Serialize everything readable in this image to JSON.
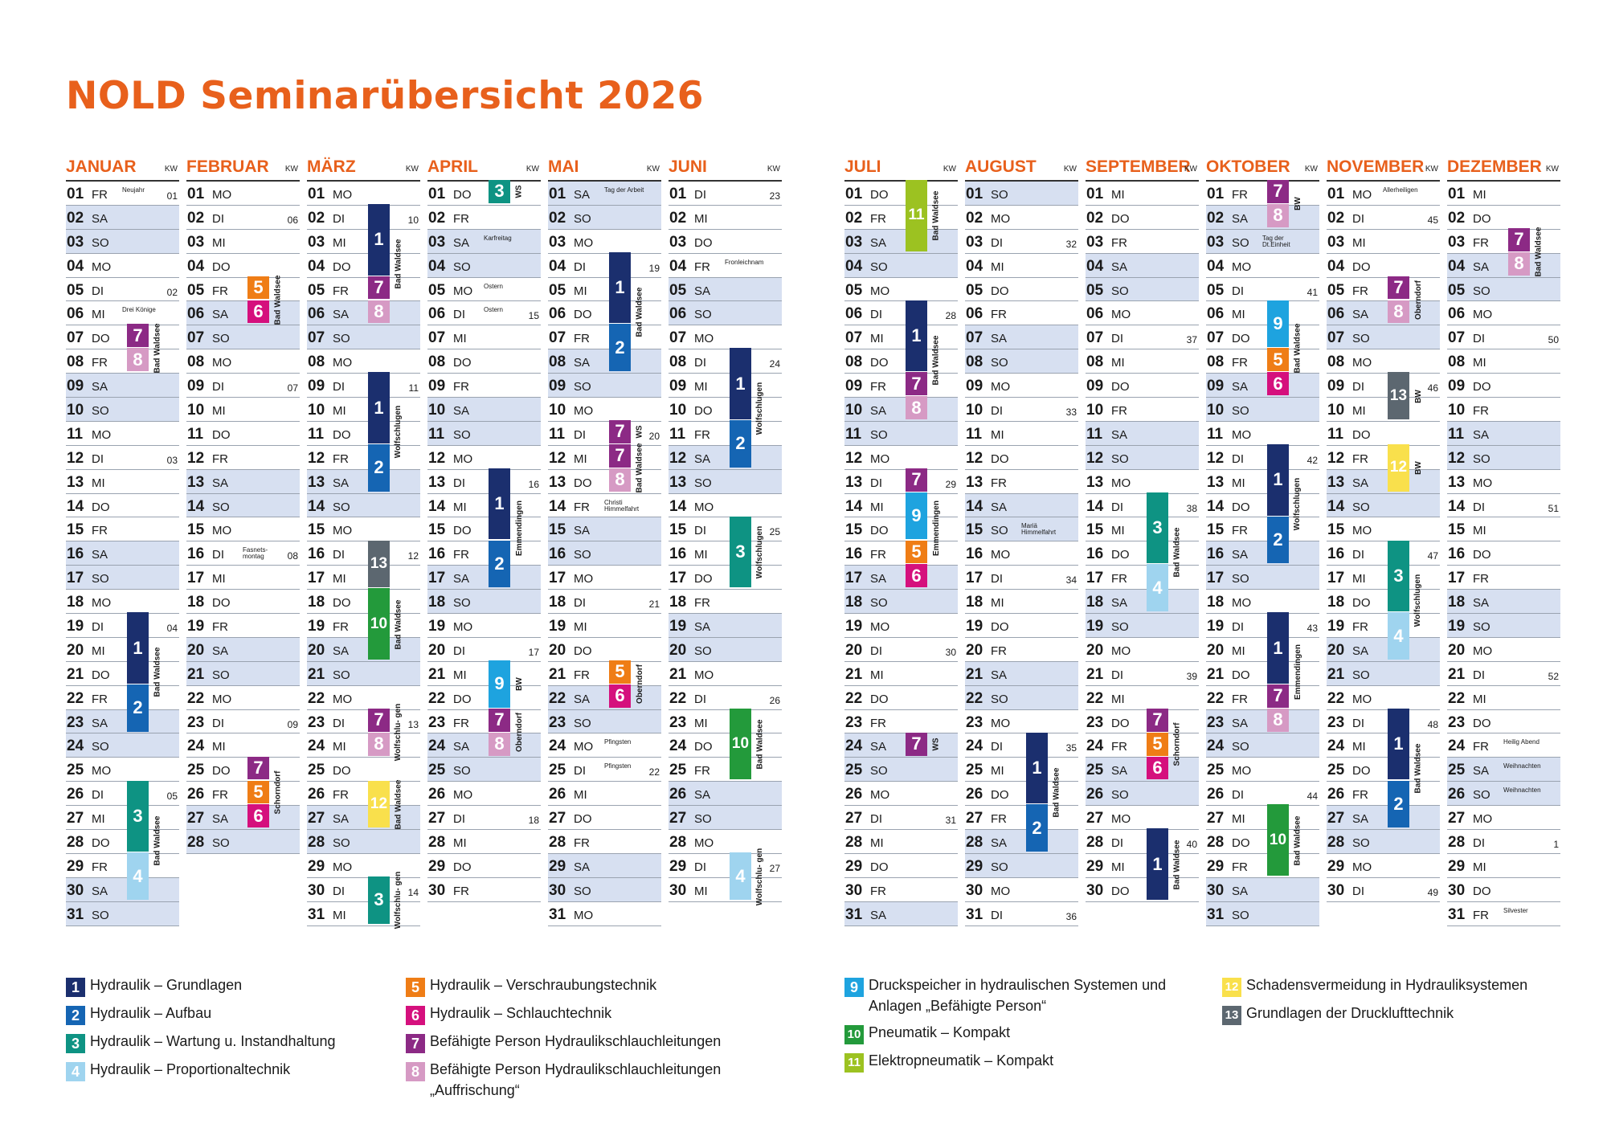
{
  "title": "NOLD Seminarübersicht 2026",
  "kw_label": "KW",
  "colors": {
    "1": "#1b2f6e",
    "2": "#1565b3",
    "3": "#0e9383",
    "4": "#9fd4ef",
    "5": "#ef7d16",
    "6": "#d5107d",
    "7": "#8c2a85",
    "8": "#d69ac4",
    "9": "#1ea3df",
    "10": "#239a3b",
    "11": "#9cc221",
    "12": "#f9e04c",
    "13": "#5c6770"
  },
  "months": [
    {
      "name": "JANUAR",
      "start": 4,
      "days": 31,
      "kw": {
        "1": "01",
        "5": "02",
        "12": "03",
        "19": "04",
        "26": "05"
      },
      "hol": {
        "1": "Neujahr",
        "6": "Drei Könige"
      },
      "seminars": [
        {
          "n": "7",
          "s": 7,
          "e": 7
        },
        {
          "n": "8",
          "s": 8,
          "e": 8
        },
        {
          "n": "1",
          "s": 19,
          "e": 21
        },
        {
          "n": "2",
          "s": 22,
          "e": 23
        },
        {
          "n": "3",
          "s": 26,
          "e": 28
        },
        {
          "n": "4",
          "s": 29,
          "e": 30
        }
      ],
      "locs": [
        {
          "t": "Bad Waldsee",
          "s": 7,
          "e": 8
        },
        {
          "t": "Bad Waldsee",
          "s": 19,
          "e": 23
        },
        {
          "t": "Bad Waldsee",
          "s": 26,
          "e": 30
        }
      ]
    },
    {
      "name": "FEBRUAR",
      "start": 0,
      "days": 28,
      "kw": {
        "2": "06",
        "9": "07",
        "16": "08",
        "23": "09"
      },
      "hol": {
        "16": "Fasnets- montag"
      },
      "seminars": [
        {
          "n": "5",
          "s": 5,
          "e": 5
        },
        {
          "n": "6",
          "s": 6,
          "e": 6
        },
        {
          "n": "7",
          "s": 25,
          "e": 25
        },
        {
          "n": "5",
          "s": 26,
          "e": 26
        },
        {
          "n": "6",
          "s": 27,
          "e": 27
        }
      ],
      "locs": [
        {
          "t": "Bad Waldsee",
          "s": 5,
          "e": 6
        },
        {
          "t": "Schorndorf",
          "s": 25,
          "e": 27
        }
      ]
    },
    {
      "name": "MÄRZ",
      "start": 0,
      "days": 31,
      "kw": {
        "2": "10",
        "9": "11",
        "16": "12",
        "23": "13",
        "30": "14"
      },
      "hol": {},
      "seminars": [
        {
          "n": "1",
          "s": 2,
          "e": 4
        },
        {
          "n": "7",
          "s": 5,
          "e": 5
        },
        {
          "n": "8",
          "s": 6,
          "e": 6
        },
        {
          "n": "1",
          "s": 9,
          "e": 11
        },
        {
          "n": "2",
          "s": 12,
          "e": 13
        },
        {
          "n": "13",
          "s": 16,
          "e": 17
        },
        {
          "n": "10",
          "s": 18,
          "e": 20
        },
        {
          "n": "7",
          "s": 23,
          "e": 23
        },
        {
          "n": "8",
          "s": 24,
          "e": 24
        },
        {
          "n": "12",
          "s": 26,
          "e": 27
        },
        {
          "n": "3",
          "s": 30,
          "e": 31
        }
      ],
      "locs": [
        {
          "t": "Bad Waldsee",
          "s": 2,
          "e": 6
        },
        {
          "t": "Wolfschlugen",
          "s": 9,
          "e": 13
        },
        {
          "t": "Bad Waldsee",
          "s": 18,
          "e": 20
        },
        {
          "t": "Wolfschlu- gen",
          "s": 23,
          "e": 24
        },
        {
          "t": "Bad Waldsee",
          "s": 26,
          "e": 27
        },
        {
          "t": "Wolfschlu- gen",
          "s": 30,
          "e": 31
        }
      ]
    },
    {
      "name": "APRIL",
      "start": 3,
      "days": 30,
      "kw": {
        "6": "15",
        "13": "16",
        "20": "17",
        "27": "18"
      },
      "hol": {
        "3": "Karfreitag",
        "5": "Ostern",
        "6": "Ostern"
      },
      "seminars": [
        {
          "n": "3",
          "s": 1,
          "e": 1
        },
        {
          "n": "1",
          "s": 13,
          "e": 15
        },
        {
          "n": "2",
          "s": 16,
          "e": 17
        },
        {
          "n": "9",
          "s": 21,
          "e": 22
        },
        {
          "n": "7",
          "s": 23,
          "e": 23
        },
        {
          "n": "8",
          "s": 24,
          "e": 24
        }
      ],
      "locs": [
        {
          "t": "WS",
          "s": 1,
          "e": 1
        },
        {
          "t": "Emmendingen",
          "s": 13,
          "e": 17
        },
        {
          "t": "BW",
          "s": 21,
          "e": 22
        },
        {
          "t": "Oberndorf",
          "s": 23,
          "e": 24
        }
      ]
    },
    {
      "name": "MAI",
      "start": 5,
      "days": 31,
      "kw": {
        "4": "19",
        "11": "20",
        "18": "21",
        "25": "22"
      },
      "hol": {
        "1": "Tag der Arbeit",
        "14": "Christi Himmelfahrt",
        "24": "Pfingsten",
        "25": "Pfingsten"
      },
      "seminars": [
        {
          "n": "1",
          "s": 4,
          "e": 6
        },
        {
          "n": "2",
          "s": 7,
          "e": 8
        },
        {
          "n": "7",
          "s": 11,
          "e": 11
        },
        {
          "n": "7",
          "s": 12,
          "e": 12
        },
        {
          "n": "8",
          "s": 13,
          "e": 13
        },
        {
          "n": "5",
          "s": 21,
          "e": 21
        },
        {
          "n": "6",
          "s": 22,
          "e": 22
        }
      ],
      "locs": [
        {
          "t": "Bad Waldsee",
          "s": 4,
          "e": 8
        },
        {
          "t": "WS",
          "s": 11,
          "e": 11
        },
        {
          "t": "Bad Waldsee",
          "s": 12,
          "e": 13
        },
        {
          "t": "Oberndorf",
          "s": 21,
          "e": 22
        }
      ]
    },
    {
      "name": "JUNI",
      "start": 1,
      "days": 30,
      "kw": {
        "1": "23",
        "8": "24",
        "15": "25",
        "22": "26",
        "29": "27"
      },
      "hol": {
        "4": "Fronleichnam"
      },
      "seminars": [
        {
          "n": "1",
          "s": 8,
          "e": 10
        },
        {
          "n": "2",
          "s": 11,
          "e": 12
        },
        {
          "n": "3",
          "s": 15,
          "e": 17
        },
        {
          "n": "10",
          "s": 23,
          "e": 25
        },
        {
          "n": "4",
          "s": 29,
          "e": 30
        }
      ],
      "locs": [
        {
          "t": "Wolfschlugen",
          "s": 8,
          "e": 12
        },
        {
          "t": "Wolfschlugen",
          "s": 15,
          "e": 17
        },
        {
          "t": "Bad Waldsee",
          "s": 23,
          "e": 25
        },
        {
          "t": "Wolfschlu- gen",
          "s": 29,
          "e": 30
        }
      ]
    },
    {
      "name": "JULI",
      "start": 3,
      "days": 31,
      "kw": {
        "6": "28",
        "13": "29",
        "20": "30",
        "27": "31"
      },
      "hol": {},
      "seminars": [
        {
          "n": "11",
          "s": 1,
          "e": 3
        },
        {
          "n": "1",
          "s": 6,
          "e": 8
        },
        {
          "n": "7",
          "s": 9,
          "e": 9
        },
        {
          "n": "8",
          "s": 10,
          "e": 10
        },
        {
          "n": "7",
          "s": 13,
          "e": 13
        },
        {
          "n": "9",
          "s": 14,
          "e": 15
        },
        {
          "n": "5",
          "s": 16,
          "e": 16
        },
        {
          "n": "6",
          "s": 17,
          "e": 17
        },
        {
          "n": "7",
          "s": 24,
          "e": 24
        }
      ],
      "locs": [
        {
          "t": "Bad Waldsee",
          "s": 1,
          "e": 3
        },
        {
          "t": "Bad Waldsee",
          "s": 6,
          "e": 10
        },
        {
          "t": "Emmendingen",
          "s": 13,
          "e": 17
        },
        {
          "t": "WS",
          "s": 24,
          "e": 24
        }
      ]
    },
    {
      "name": "AUGUST",
      "start": 6,
      "days": 31,
      "kw": {
        "3": "32",
        "10": "33",
        "17": "34",
        "24": "35",
        "31": "36"
      },
      "hol": {
        "15": "Mariä Himmelfahrt"
      },
      "seminars": [
        {
          "n": "1",
          "s": 24,
          "e": 26
        },
        {
          "n": "2",
          "s": 27,
          "e": 28
        }
      ],
      "locs": [
        {
          "t": "Bad Waldsee",
          "s": 24,
          "e": 28
        }
      ]
    },
    {
      "name": "SEPTEMBER",
      "start": 2,
      "days": 30,
      "kw": {
        "7": "37",
        "14": "38",
        "21": "39",
        "28": "40"
      },
      "hol": {},
      "seminars": [
        {
          "n": "3",
          "s": 14,
          "e": 16
        },
        {
          "n": "4",
          "s": 17,
          "e": 18
        },
        {
          "n": "7",
          "s": 23,
          "e": 23
        },
        {
          "n": "5",
          "s": 24,
          "e": 24
        },
        {
          "n": "6",
          "s": 25,
          "e": 25
        },
        {
          "n": "1",
          "s": 28,
          "e": 30
        }
      ],
      "locs": [
        {
          "t": "Bad Waldsee",
          "s": 14,
          "e": 18
        },
        {
          "t": "Schorndorf",
          "s": 23,
          "e": 25
        },
        {
          "t": "Bad Waldsee",
          "s": 28,
          "e": 30
        }
      ]
    },
    {
      "name": "OKTOBER",
      "start": 4,
      "days": 31,
      "kw": {
        "5": "41",
        "12": "42",
        "19": "43",
        "26": "44"
      },
      "hol": {
        "3": "Tag der Dt.Einheit"
      },
      "seminars": [
        {
          "n": "7",
          "s": 1,
          "e": 1
        },
        {
          "n": "8",
          "s": 2,
          "e": 2
        },
        {
          "n": "9",
          "s": 6,
          "e": 7
        },
        {
          "n": "5",
          "s": 8,
          "e": 8
        },
        {
          "n": "6",
          "s": 9,
          "e": 9
        },
        {
          "n": "1",
          "s": 12,
          "e": 14
        },
        {
          "n": "2",
          "s": 15,
          "e": 16
        },
        {
          "n": "1",
          "s": 19,
          "e": 21
        },
        {
          "n": "7",
          "s": 22,
          "e": 22
        },
        {
          "n": "8",
          "s": 23,
          "e": 23
        },
        {
          "n": "10",
          "s": 27,
          "e": 29
        }
      ],
      "locs": [
        {
          "t": "BW",
          "s": 1,
          "e": 2
        },
        {
          "t": "Bad Waldsee",
          "s": 6,
          "e": 9
        },
        {
          "t": "Wolfschlugen",
          "s": 12,
          "e": 16
        },
        {
          "t": "Emmendingen",
          "s": 19,
          "e": 23
        },
        {
          "t": "Bad Waldsee",
          "s": 27,
          "e": 29
        }
      ]
    },
    {
      "name": "NOVEMBER",
      "start": 0,
      "days": 30,
      "kw": {
        "2": "45",
        "9": "46",
        "16": "47",
        "23": "48",
        "30": "49"
      },
      "hol": {
        "1": "Allerheiligen"
      },
      "seminars": [
        {
          "n": "7",
          "s": 5,
          "e": 5
        },
        {
          "n": "8",
          "s": 6,
          "e": 6
        },
        {
          "n": "13",
          "s": 9,
          "e": 10
        },
        {
          "n": "12",
          "s": 12,
          "e": 13
        },
        {
          "n": "3",
          "s": 16,
          "e": 18
        },
        {
          "n": "4",
          "s": 19,
          "e": 20
        },
        {
          "n": "1",
          "s": 23,
          "e": 25
        },
        {
          "n": "2",
          "s": 26,
          "e": 27
        }
      ],
      "locs": [
        {
          "t": "Oberndorf",
          "s": 5,
          "e": 6
        },
        {
          "t": "BW",
          "s": 9,
          "e": 10
        },
        {
          "t": "BW",
          "s": 12,
          "e": 13
        },
        {
          "t": "Wolfschlugen",
          "s": 16,
          "e": 20
        },
        {
          "t": "Bad Waldsee",
          "s": 23,
          "e": 27
        }
      ]
    },
    {
      "name": "DEZEMBER",
      "start": 2,
      "days": 31,
      "kw": {
        "7": "50",
        "14": "51",
        "21": "52",
        "28": "1"
      },
      "hol": {
        "24": "Heilig Abend",
        "25": "Weihnachten",
        "26": "Weihnachten",
        "31": "Silvester"
      },
      "seminars": [
        {
          "n": "7",
          "s": 3,
          "e": 3
        },
        {
          "n": "8",
          "s": 4,
          "e": 4
        }
      ],
      "locs": [
        {
          "t": "Bad Waldsee",
          "s": 3,
          "e": 4
        }
      ]
    }
  ],
  "weekdays": [
    "MO",
    "DI",
    "MI",
    "DO",
    "FR",
    "SA",
    "SO"
  ],
  "legend": [
    {
      "n": "1",
      "label": "Hydraulik – Grundlagen"
    },
    {
      "n": "2",
      "label": "Hydraulik – Aufbau"
    },
    {
      "n": "3",
      "label": "Hydraulik – Wartung u. Instandhaltung"
    },
    {
      "n": "4",
      "label": "Hydraulik – Proportionaltechnik"
    },
    {
      "n": "5",
      "label": "Hydraulik – Verschraubungstechnik"
    },
    {
      "n": "6",
      "label": "Hydraulik – Schlauchtechnik"
    },
    {
      "n": "7",
      "label": "Befähigte Person Hydraulikschlauchleitungen"
    },
    {
      "n": "8",
      "label": "Befähigte Person Hydraulikschlauchleitungen „Auffrischung“"
    },
    {
      "n": "9",
      "label": "Druckspeicher in hydraulischen Systemen und Anlagen „Befähigte Person“"
    },
    {
      "n": "10",
      "label": "Pneumatik – Kompakt"
    },
    {
      "n": "11",
      "label": "Elektropneumatik – Kompakt"
    },
    {
      "n": "12",
      "label": "Schadensvermeidung in Hydrauliksystemen"
    },
    {
      "n": "13",
      "label": "Grundlagen der Drucklufttechnik"
    }
  ]
}
